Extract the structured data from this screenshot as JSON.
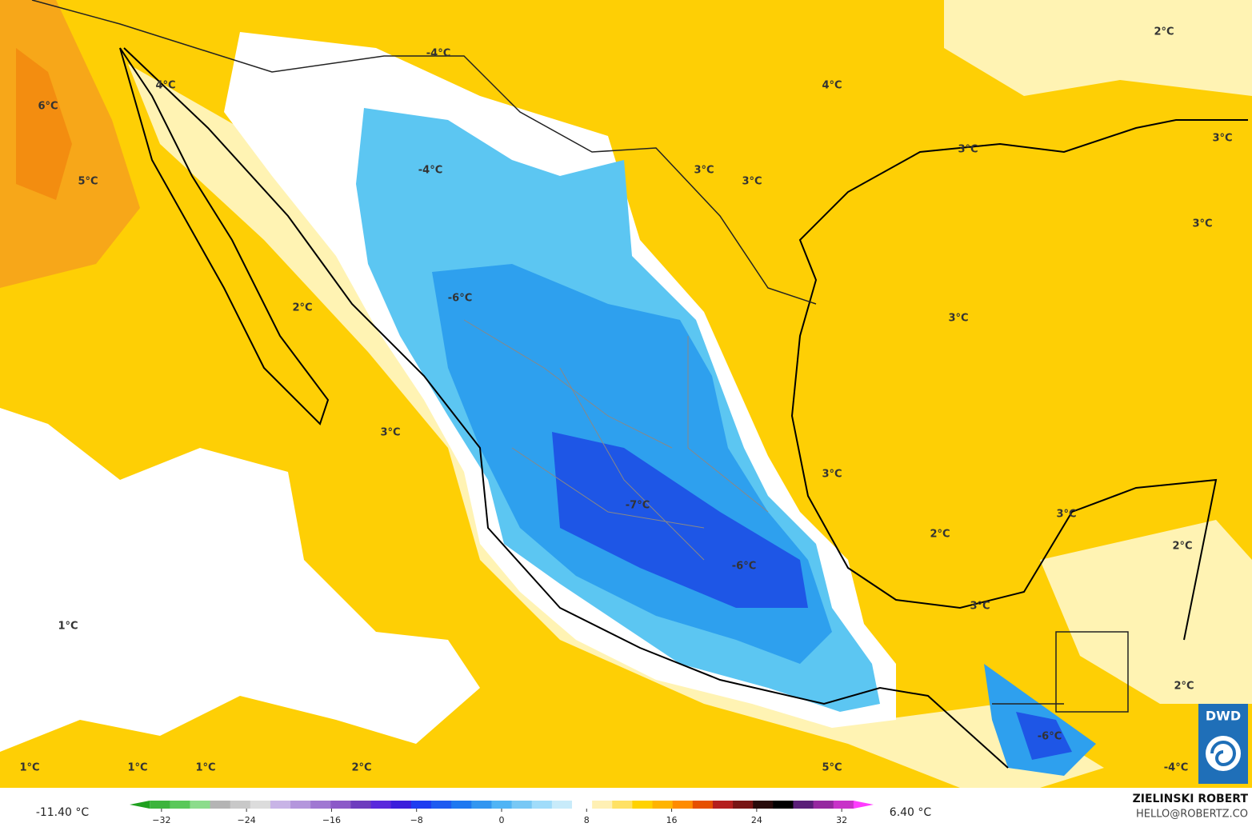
{
  "map": {
    "labels": [
      "2°C",
      "-4°C",
      "4°C",
      "4°C",
      "6°C",
      "3°C",
      "3°C",
      "3°C",
      "3°C",
      "-4°C",
      "5°C",
      "3°C",
      "-6°C",
      "2°C",
      "3°C",
      "3°C",
      "3°C",
      "-7°C",
      "3°C",
      "2°C",
      "2°C",
      "-6°C",
      "3°C",
      "1°C",
      "2°C",
      "-6°C",
      "1°C",
      "1°C",
      "1°C",
      "2°C",
      "5°C",
      "-4°C"
    ]
  },
  "colorbar": {
    "min_label": "-11.40 °C",
    "max_label": "6.40 °C",
    "lim": [
      -35,
      35
    ],
    "ticks": [
      {
        "value": -32,
        "label": "−32"
      },
      {
        "value": -24,
        "label": "−24"
      },
      {
        "value": -16,
        "label": "−16"
      },
      {
        "value": -8,
        "label": "−8"
      },
      0,
      8,
      16,
      24,
      32
    ],
    "colors": [
      "#1fa01f",
      "#3cb43c",
      "#5ac85a",
      "#8cdc8c",
      "#b4b4b4",
      "#c8c8c8",
      "#dcdcdc",
      "#c8b4e6",
      "#b496dc",
      "#a078d2",
      "#8c5ac8",
      "#6e3cbe",
      "#5a28dc",
      "#3c1edc",
      "#1e3cf0",
      "#1e5af0",
      "#1e78f0",
      "#3296f0",
      "#50b4f5",
      "#78c8f5",
      "#a0dcfa",
      "#c8ebfa",
      "#ffffff",
      "#fff0b4",
      "#ffe164",
      "#ffd200",
      "#ffb400",
      "#ff8c00",
      "#e65000",
      "#b41e1e",
      "#781414",
      "#280a0a",
      "#000000",
      "#5a1e78",
      "#9628a0",
      "#c832c8",
      "#ff3cff"
    ]
  },
  "credit": {
    "author": "ZIELINSKI ROBERT",
    "email": "HELLO@ROBERTZ.CO"
  },
  "logo": "DWD"
}
